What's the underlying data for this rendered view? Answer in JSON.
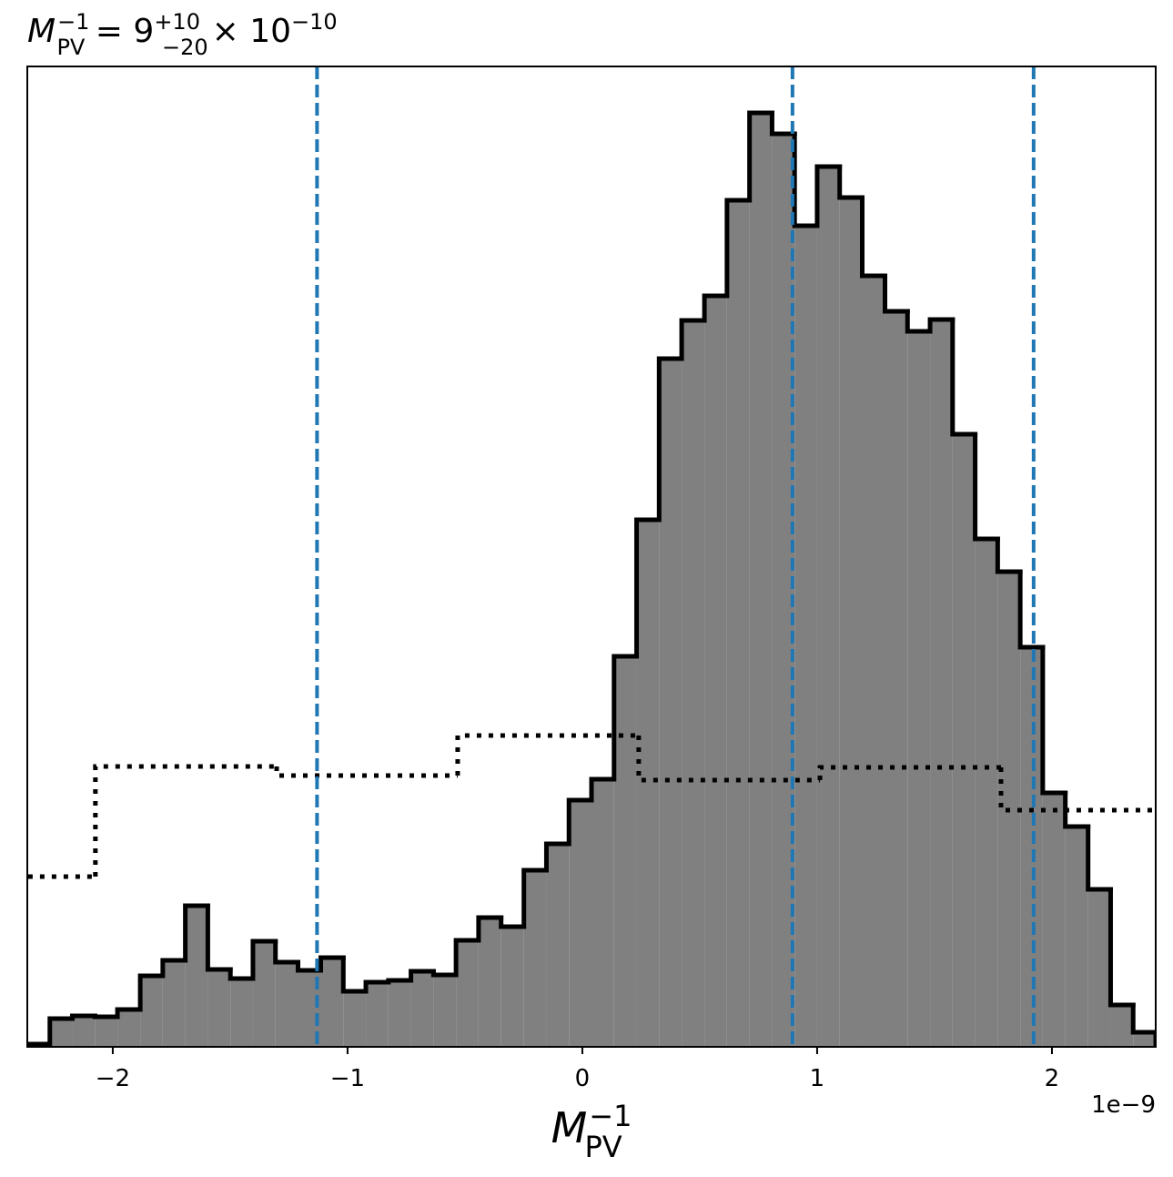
{
  "chart_data": {
    "type": "histogram",
    "title": {
      "symbol": "M",
      "sub": "PV",
      "sup": "−1",
      "eq": " = 9",
      "sup2": "+10",
      "sub2": "−20",
      "times": "× 10",
      "exp": "−10"
    },
    "xlabel": {
      "symbol": "M",
      "sub": "PV",
      "sup": "−1"
    },
    "offset_text": "1e−9",
    "xlim": [
      -2.364,
      2.442
    ],
    "ylim": [
      0,
      1077
    ],
    "xticks": [
      {
        "value": -2,
        "label": "−2"
      },
      {
        "value": -1,
        "label": "−1"
      },
      0,
      1,
      2
    ],
    "bins": [
      -2.364,
      -2.268,
      -2.172,
      -2.076,
      -1.98,
      -1.883,
      -1.787,
      -1.691,
      -1.595,
      -1.499,
      -1.403,
      -1.307,
      -1.211,
      -1.114,
      -1.018,
      -0.922,
      -0.826,
      -0.73,
      -0.634,
      -0.538,
      -0.442,
      -0.346,
      -0.249,
      -0.153,
      -0.057,
      0.039,
      0.135,
      0.231,
      0.327,
      0.423,
      0.52,
      0.616,
      0.712,
      0.808,
      0.904,
      1.0,
      1.096,
      1.192,
      1.289,
      1.385,
      1.481,
      1.577,
      1.673,
      1.769,
      1.865,
      1.961,
      2.057,
      2.154,
      2.25,
      2.346,
      2.442
    ],
    "values": [
      3,
      31,
      34,
      33,
      41,
      78,
      95,
      155,
      85,
      75,
      116,
      93,
      84,
      98,
      61,
      71,
      73,
      83,
      79,
      117,
      142,
      132,
      194,
      223,
      271,
      294,
      429,
      579,
      756,
      798,
      825,
      930,
      1026,
      1003,
      902,
      967,
      933,
      847,
      808,
      786,
      799,
      673,
      558,
      522,
      439,
      279,
      242,
      173,
      46,
      16
    ],
    "color": "#808080",
    "edgecolor": "#000000",
    "prior": {
      "bins": [
        -2.845,
        -2.074,
        -1.302,
        -0.531,
        0.24,
        1.012,
        1.783,
        2.554
      ],
      "values": [
        187,
        308,
        298,
        342,
        293,
        307,
        260
      ],
      "color": "#000000",
      "linestyle": "dotted"
    },
    "vlines": {
      "values": [
        -1.13,
        0.895,
        1.922
      ],
      "color": "#1f77b4",
      "linestyle": "dashed"
    }
  }
}
